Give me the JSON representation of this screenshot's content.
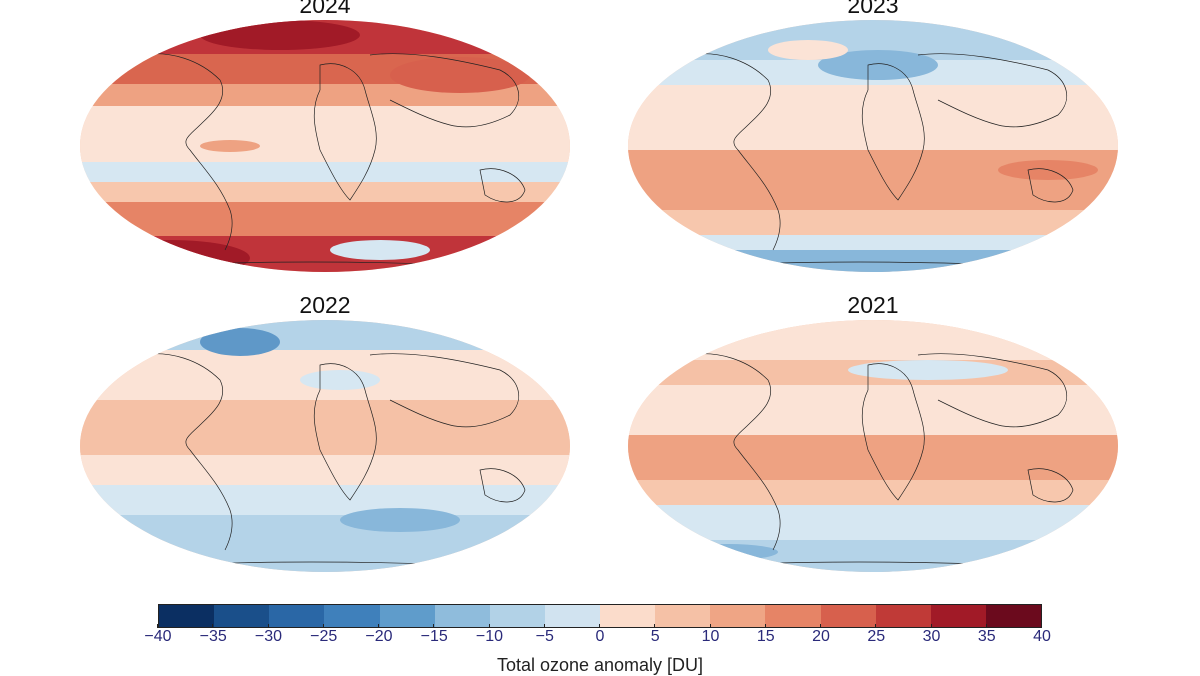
{
  "panels": [
    {
      "year": "2024"
    },
    {
      "year": "2023"
    },
    {
      "year": "2022"
    },
    {
      "year": "2021"
    }
  ],
  "colorbar": {
    "label": "Total ozone anomaly [DU]",
    "ticks": [
      "−40",
      "−35",
      "−30",
      "−25",
      "−20",
      "−15",
      "−10",
      "−5",
      "0",
      "5",
      "10",
      "15",
      "20",
      "25",
      "30",
      "35",
      "40"
    ],
    "colors": [
      "#0b2f62",
      "#1a4f8a",
      "#2a67a6",
      "#3f80bb",
      "#5f9ccb",
      "#8fbcdc",
      "#b2d2e7",
      "#d1e3f0",
      "#fbdccb",
      "#f5c1a6",
      "#efa585",
      "#e68466",
      "#d7604d",
      "#c03a37",
      "#a11a27",
      "#6b0a1d"
    ]
  },
  "map_colors": {
    "strong_red": "#c0343a",
    "red": "#d9664f",
    "orange": "#eea282",
    "light_orange": "#f7c7ad",
    "pale": "#fbe3d6",
    "pale_blue": "#d6e7f2",
    "light_blue": "#b4d3e8",
    "blue": "#88b7da",
    "mid_blue": "#5f98c8"
  }
}
